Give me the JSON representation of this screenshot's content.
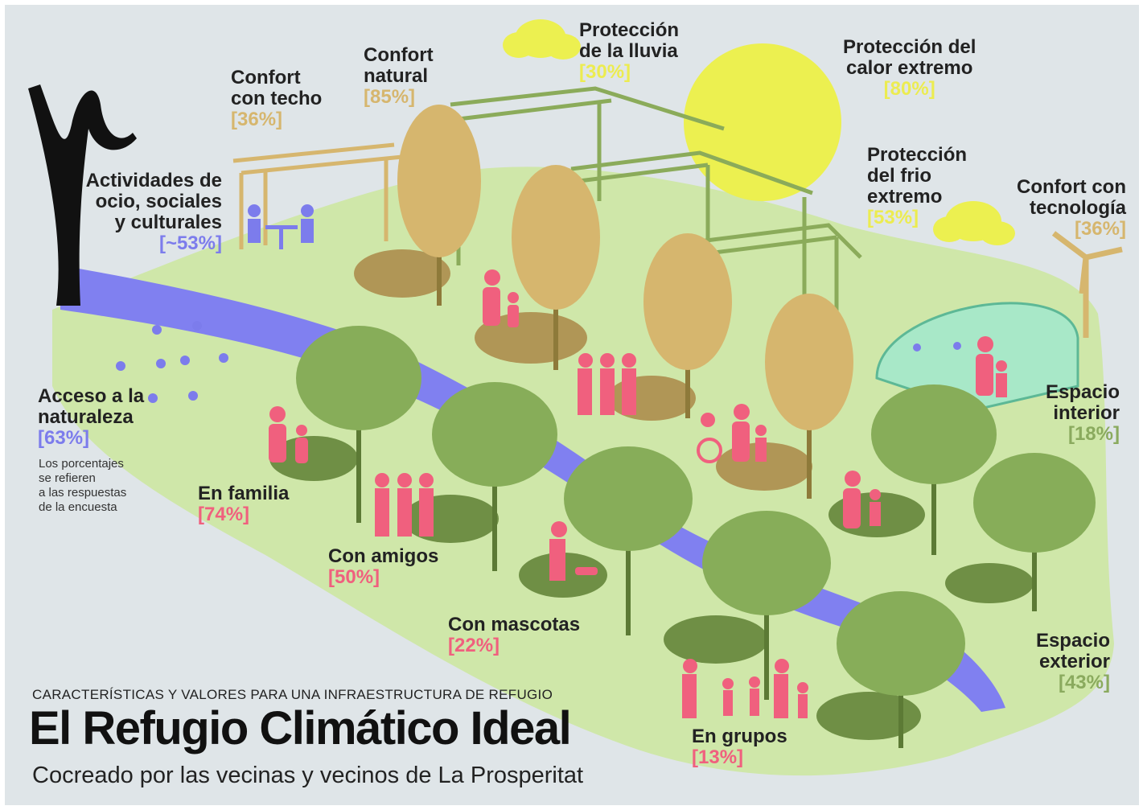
{
  "header": {
    "subtitle": "CARACTERÍSTICAS Y VALORES PARA UNA INFRAESTRUCTURA DE REFUGIO",
    "title": "El Refugio Climático Ideal",
    "tagline": "Cocreado por las vecinas y vecinos de La Prosperitat"
  },
  "note": [
    "Los porcentajes",
    "se refieren",
    "a las respuestas",
    "de la encuesta"
  ],
  "labels": [
    {
      "lines": [
        "Actividades de",
        "ocio, sociales",
        "y culturales"
      ],
      "percent": "[~53%]",
      "color": "#7c7cec"
    },
    {
      "lines": [
        "Confort",
        "con techo"
      ],
      "percent": "[36%]",
      "color": "#d6b66e"
    },
    {
      "lines": [
        "Confort",
        "natural"
      ],
      "percent": "[85%]",
      "color": "#d6b66e"
    },
    {
      "lines": [
        "Protección",
        "de la lluvia"
      ],
      "percent": "[30%]",
      "color": "#ecec50"
    },
    {
      "lines": [
        "Protección del",
        "calor extremo"
      ],
      "percent": "[80%]",
      "color": "#ecec50"
    },
    {
      "lines": [
        "Protección",
        "del frio",
        "extremo"
      ],
      "percent": "[53%]",
      "color": "#ecec50"
    },
    {
      "lines": [
        "Confort con",
        "tecnología"
      ],
      "percent": "[36%]",
      "color": "#d6b66e"
    },
    {
      "lines": [
        "Acceso a la",
        "naturaleza"
      ],
      "percent": "[63%]",
      "color": "#7c7cec"
    },
    {
      "lines": [
        "En familia"
      ],
      "percent": "[74%]",
      "color": "#f0607e"
    },
    {
      "lines": [
        "Con amigos"
      ],
      "percent": "[50%]",
      "color": "#f0607e"
    },
    {
      "lines": [
        "Con mascotas"
      ],
      "percent": "[22%]",
      "color": "#f0607e"
    },
    {
      "lines": [
        "En grupos"
      ],
      "percent": "[13%]",
      "color": "#f0607e"
    },
    {
      "lines": [
        "Espacio",
        "interior"
      ],
      "percent": "[18%]",
      "color": "#8aaa5e"
    },
    {
      "lines": [
        "Espacio",
        "exterior"
      ],
      "percent": "[43%]",
      "color": "#8aaa5e"
    }
  ]
}
